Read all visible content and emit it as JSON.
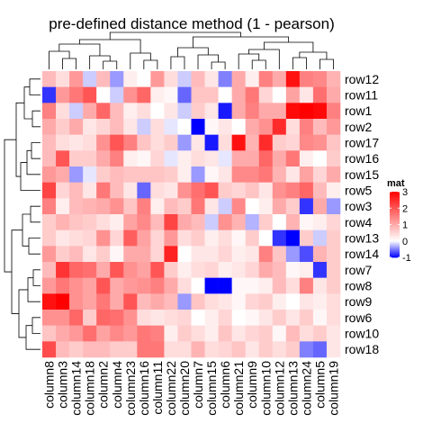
{
  "chart_data": {
    "type": "heatmap",
    "title": "pre-defined distance method (1 - pearson)",
    "rows": [
      "row12",
      "row11",
      "row1",
      "row2",
      "row17",
      "row16",
      "row15",
      "row5",
      "row3",
      "row4",
      "row13",
      "row14",
      "row7",
      "row8",
      "row9",
      "row6",
      "row10",
      "row18"
    ],
    "columns": [
      "column8",
      "column3",
      "column14",
      "column18",
      "column2",
      "column4",
      "column23",
      "column16",
      "column11",
      "column22",
      "column20",
      "column7",
      "column15",
      "column6",
      "column21",
      "column9",
      "column10",
      "column12",
      "column13",
      "column24",
      "column5",
      "column19"
    ],
    "values": [
      [
        0.8,
        0.4,
        1.2,
        -0.2,
        0.8,
        -0.4,
        0.2,
        0.0,
        1.2,
        0.4,
        -0.2,
        0.8,
        0.3,
        -0.5,
        1.0,
        0.2,
        1.5,
        1.0,
        2.8,
        1.5,
        1.4,
        0.9
      ],
      [
        -0.8,
        1.2,
        1.6,
        2.0,
        0.0,
        -0.2,
        1.3,
        1.8,
        0.2,
        0.1,
        -0.6,
        0.7,
        0.7,
        0.0,
        1.0,
        1.6,
        0.5,
        0.0,
        1.1,
        0.3,
        1.7,
        1.0
      ],
      [
        1.5,
        0.4,
        -0.2,
        1.0,
        1.8,
        0.8,
        0.2,
        0.4,
        0.0,
        0.3,
        -0.2,
        0.6,
        0.3,
        -0.9,
        1.0,
        1.5,
        1.0,
        1.0,
        2.9,
        3.0,
        2.9,
        1.5
      ],
      [
        1.0,
        0.6,
        1.0,
        0.3,
        0.5,
        0.8,
        0.3,
        -0.2,
        0.4,
        -0.1,
        0.0,
        -1.0,
        0.1,
        0.3,
        0.0,
        1.0,
        1.3,
        2.5,
        0.4,
        1.5,
        0.8,
        1.2
      ],
      [
        0.8,
        0.4,
        0.3,
        0.4,
        1.3,
        2.0,
        1.5,
        0.7,
        0.4,
        0.6,
        -0.4,
        0.3,
        -0.9,
        0.4,
        2.8,
        0.9,
        2.5,
        0.6,
        0.5,
        1.4,
        1.3,
        0.7
      ],
      [
        0.8,
        2.0,
        0.6,
        0.6,
        1.0,
        1.5,
        0.2,
        0.1,
        0.5,
        -0.1,
        0.2,
        0.4,
        0.3,
        -0.1,
        1.0,
        1.0,
        1.8,
        1.0,
        1.6,
        0.2,
        0.0,
        0.6
      ],
      [
        1.2,
        1.0,
        -0.4,
        -0.1,
        0.6,
        0.8,
        0.7,
        0.7,
        0.7,
        0.6,
        0.2,
        -0.4,
        0.1,
        0.3,
        1.4,
        1.4,
        1.6,
        0.9,
        0.3,
        1.1,
        0.5,
        1.0
      ],
      [
        2.2,
        0.5,
        0.8,
        0.3,
        1.6,
        0.8,
        0.3,
        -0.6,
        0.4,
        0.3,
        1.3,
        1.7,
        2.0,
        0.6,
        0.5,
        0.7,
        0.3,
        1.3,
        1.5,
        1.8,
        0.8,
        0.2
      ],
      [
        1.5,
        0.2,
        0.8,
        0.9,
        1.0,
        1.3,
        0.7,
        1.5,
        0.2,
        0.8,
        0.6,
        1.6,
        0.3,
        -0.2,
        1.4,
        0.0,
        0.2,
        1.0,
        0.6,
        -0.8,
        1.0,
        -0.4
      ],
      [
        0.6,
        0.9,
        0.7,
        0.6,
        0.4,
        0.2,
        1.1,
        1.4,
        0.8,
        2.2,
        1.0,
        0.8,
        -0.2,
        1.3,
        0.9,
        -0.3,
        0.6,
        0.0,
        0.9,
        0.1,
        0.2,
        0.5
      ],
      [
        0.6,
        0.3,
        0.4,
        0.5,
        1.3,
        0.5,
        1.9,
        1.1,
        0.5,
        1.2,
        0.4,
        0.6,
        0.2,
        0.4,
        0.1,
        0.6,
        0.0,
        -0.8,
        -1.0,
        0.6,
        -0.2,
        0.6
      ],
      [
        1.2,
        0.6,
        0.8,
        0.3,
        0.6,
        0.1,
        1.0,
        1.0,
        0.5,
        2.6,
        0.0,
        0.3,
        0.3,
        0.5,
        0.2,
        0.3,
        1.5,
        0.7,
        -0.4,
        -0.7,
        0.9,
        0.6
      ],
      [
        0.8,
        2.4,
        1.8,
        1.7,
        1.0,
        2.0,
        1.3,
        1.1,
        2.0,
        0.6,
        0.2,
        0.4,
        0.5,
        0.2,
        0.3,
        0.5,
        1.0,
        0.8,
        0.1,
        0.2,
        -0.8,
        0.6
      ],
      [
        1.2,
        1.6,
        1.3,
        1.1,
        2.0,
        1.0,
        1.2,
        1.3,
        1.5,
        1.0,
        0.4,
        0.0,
        -1.0,
        -1.0,
        0.1,
        0.1,
        0.2,
        0.8,
        0.4,
        1.5,
        0.3,
        0.6
      ],
      [
        2.8,
        3.0,
        1.3,
        1.1,
        1.6,
        1.0,
        2.0,
        0.8,
        1.0,
        0.8,
        -0.4,
        0.7,
        0.4,
        0.3,
        0.1,
        0.5,
        0.6,
        0.2,
        0.0,
        0.3,
        0.2,
        0.4
      ],
      [
        1.3,
        1.3,
        1.8,
        0.6,
        1.8,
        1.7,
        1.3,
        0.4,
        0.3,
        0.4,
        0.5,
        0.0,
        0.2,
        0.5,
        0.0,
        0.1,
        0.3,
        0.6,
        0.3,
        0.6,
        0.1,
        0.4
      ],
      [
        0.7,
        1.0,
        1.2,
        1.7,
        1.1,
        1.4,
        1.2,
        1.6,
        1.5,
        0.2,
        0.6,
        0.4,
        0.2,
        0.7,
        0.3,
        0.5,
        0.6,
        0.1,
        0.8,
        0.4,
        0.6,
        0.3
      ],
      [
        2.1,
        0.8,
        0.6,
        0.8,
        0.8,
        0.6,
        0.6,
        1.6,
        1.6,
        0.4,
        0.4,
        0.9,
        0.4,
        0.5,
        0.7,
        0.3,
        0.6,
        0.4,
        0.6,
        -0.5,
        -0.6,
        0.3
      ]
    ],
    "legend": {
      "title": "mat",
      "ticks": [
        3,
        2,
        1,
        0,
        -1
      ],
      "colors": {
        "low": "#0000ff",
        "mid": "#ffffff",
        "high": "#ff0000"
      }
    }
  }
}
